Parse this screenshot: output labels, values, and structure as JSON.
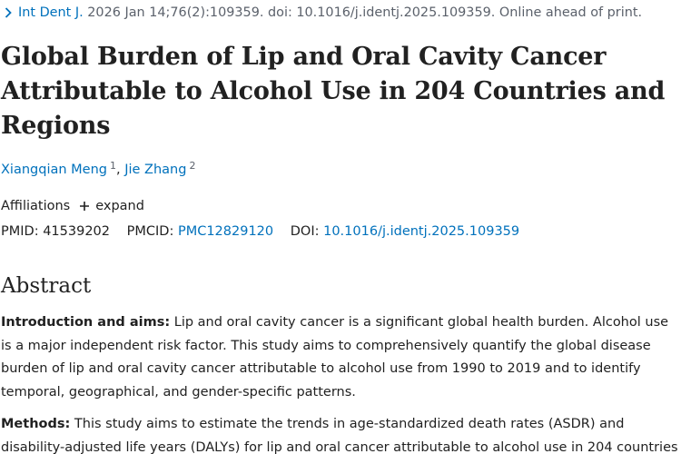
{
  "citation": {
    "journal": "Int Dent J.",
    "details": "2026 Jan 14;76(2):109359. doi: 10.1016/j.identj.2025.109359. Online ahead of print.",
    "icon": "chevron-right-icon"
  },
  "title": "Global Burden of Lip and Oral Cavity Cancer Attributable to Alcohol Use in 204 Countries and Regions",
  "authors": [
    {
      "name": "Xiangqian Meng",
      "affiliation": "1"
    },
    {
      "name": "Jie Zhang",
      "affiliation": "2"
    }
  ],
  "author_separator": ",",
  "affiliations": {
    "label": "Affiliations",
    "expand_label": "expand",
    "expand_icon": "plus-icon"
  },
  "ids": {
    "pmid_label": "PMID:",
    "pmid": "41539202",
    "pmcid_label": "PMCID:",
    "pmcid": "PMC12829120",
    "doi_label": "DOI:",
    "doi": "10.1016/j.identj.2025.109359"
  },
  "abstract": {
    "heading": "Abstract",
    "sections": [
      {
        "label": "Introduction and aims:",
        "text": "Lip and oral cavity cancer is a significant global health burden. Alcohol use is a major independent risk factor. This study aims to comprehensively quantify the global disease burden of lip and oral cavity cancer attributable to alcohol use from 1990 to 2019 and to identify temporal, geographical, and gender-specific patterns."
      },
      {
        "label": "Methods:",
        "text": "This study aims to estimate the trends in age-standardized death rates (ASDR) and disability-adjusted life years (DALYs) for lip and oral cancer attributable to alcohol use in 204 countries"
      }
    ]
  },
  "colors": {
    "link": "#0071bc",
    "text": "#212121",
    "muted": "#5b616b"
  }
}
